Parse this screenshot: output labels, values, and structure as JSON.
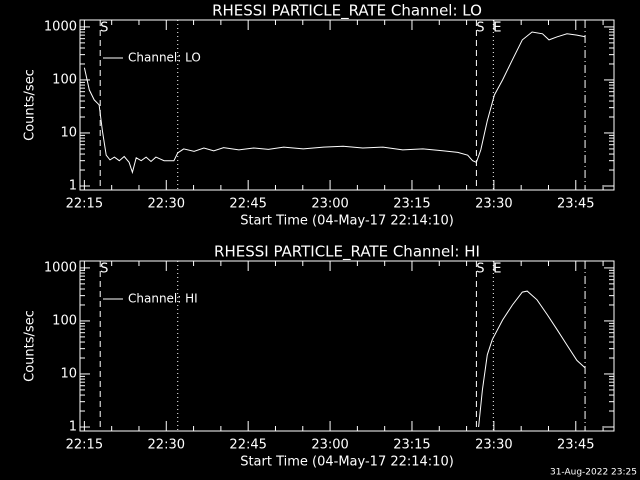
{
  "chart_data": [
    {
      "type": "line",
      "title": "RHESSI PARTICLE_RATE Channel: LO",
      "xlabel": "Start Time (04-May-17 22:14:10)",
      "ylabel": "Counts/sec",
      "x": [
        1335.0,
        1335.9,
        1336.8,
        1337.7,
        1338.3,
        1339.0,
        1339.7,
        1340.5,
        1341.4,
        1342.3,
        1343.2,
        1343.8,
        1344.5,
        1345.4,
        1346.3,
        1347.2,
        1348.1,
        1349.6,
        1351.4,
        1352.1,
        1353.2,
        1355.1,
        1356.9,
        1358.7,
        1360.5,
        1363.3,
        1366.0,
        1368.7,
        1371.5,
        1375.1,
        1378.8,
        1382.4,
        1386.0,
        1389.7,
        1393.3,
        1397.0,
        1400.6,
        1403.4,
        1405.2,
        1406.1,
        1406.8,
        1407.6,
        1408.8,
        1410.1,
        1411.6,
        1413.4,
        1415.2,
        1417.0,
        1418.9,
        1420.1,
        1421.6,
        1423.4,
        1425.2,
        1426.7
      ],
      "series": [
        {
          "name": "Channel: LO",
          "color": "#ffffff",
          "values": [
            170,
            65,
            42,
            34,
            11,
            3.8,
            3.1,
            3.5,
            3,
            3.6,
            2.8,
            1.8,
            3.4,
            3,
            3.5,
            2.9,
            3.5,
            3,
            3,
            4.2,
            5,
            4.5,
            5.2,
            4.6,
            5.3,
            4.8,
            5.2,
            4.9,
            5.4,
            5,
            5.4,
            5.6,
            5.2,
            5.4,
            4.8,
            5,
            4.6,
            4.3,
            3.8,
            3,
            2.8,
            4.8,
            17,
            52,
            100,
            240,
            570,
            800,
            740,
            570,
            650,
            740,
            700,
            650
          ]
        }
      ],
      "xlim": [
        1334.2,
        1432
      ],
      "xticks": [
        {
          "value": 1335,
          "label": "22:15"
        },
        {
          "value": 1350,
          "label": "22:30"
        },
        {
          "value": 1365,
          "label": "22:45"
        },
        {
          "value": 1380,
          "label": "23:00"
        },
        {
          "value": 1395,
          "label": "23:15"
        },
        {
          "value": 1410,
          "label": "23:30"
        },
        {
          "value": 1425,
          "label": "23:45"
        }
      ],
      "ylim": [
        0.84,
        1350
      ],
      "yticks": [
        1,
        10,
        100,
        1000
      ],
      "log_y": true,
      "legend": "top-left",
      "markers": [
        {
          "x": 1337.9,
          "style": "dashed",
          "label": "S"
        },
        {
          "x": 1352.1,
          "style": "dotted"
        },
        {
          "x": 1406.8,
          "style": "dashed",
          "label": "S"
        },
        {
          "x": 1409.9,
          "style": "dotted",
          "label": "E"
        },
        {
          "x": 1426.7,
          "style": "dashdot"
        }
      ]
    },
    {
      "type": "line",
      "title": "RHESSI PARTICLE_RATE Channel: HI",
      "xlabel": "Start Time (04-May-17 22:14:10)",
      "ylabel": "Counts/sec",
      "x": [
        1407.2,
        1407.9,
        1408.8,
        1409.7,
        1411.6,
        1413.4,
        1415.2,
        1416.1,
        1417.9,
        1419.8,
        1421.6,
        1423.4,
        1425.2,
        1426.7
      ],
      "series": [
        {
          "name": "Channel: HI",
          "color": "#ffffff",
          "values": [
            1,
            5,
            23,
            44,
            104,
            200,
            350,
            365,
            250,
            130,
            68,
            35,
            18,
            13
          ]
        }
      ],
      "xlim": [
        1334.2,
        1432
      ],
      "xticks": [
        {
          "value": 1335,
          "label": "22:15"
        },
        {
          "value": 1350,
          "label": "22:30"
        },
        {
          "value": 1365,
          "label": "22:45"
        },
        {
          "value": 1380,
          "label": "23:00"
        },
        {
          "value": 1395,
          "label": "23:15"
        },
        {
          "value": 1410,
          "label": "23:30"
        },
        {
          "value": 1425,
          "label": "23:45"
        }
      ],
      "ylim": [
        0.84,
        1350
      ],
      "yticks": [
        1,
        10,
        100,
        1000
      ],
      "log_y": true,
      "legend": "top-left",
      "markers": [
        {
          "x": 1337.9,
          "style": "dashed",
          "label": "S"
        },
        {
          "x": 1352.1,
          "style": "dotted"
        },
        {
          "x": 1406.8,
          "style": "dashed",
          "label": "S"
        },
        {
          "x": 1409.9,
          "style": "dotted",
          "label": "E"
        },
        {
          "x": 1426.7,
          "style": "dashdot"
        }
      ]
    }
  ],
  "footer": "31-Aug-2022 23:25"
}
